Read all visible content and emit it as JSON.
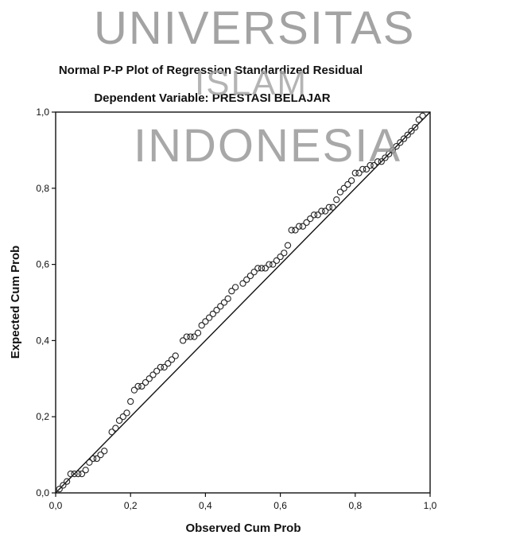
{
  "watermark": {
    "line1": "UNIVERSITAS",
    "line2": "ISLAM",
    "line3": "INDONESIA"
  },
  "chart_data": {
    "type": "scatter",
    "title": "Normal P-P Plot of Regression Standardized Residual",
    "subtitle": "Dependent Variable: PRESTASI BELAJAR",
    "xlabel": "Observed Cum Prob",
    "ylabel": "Expected Cum Prob",
    "xlim": [
      0,
      1
    ],
    "ylim": [
      0,
      1
    ],
    "x_ticks": [
      0,
      0.2,
      0.4,
      0.6,
      0.8,
      1.0
    ],
    "y_ticks": [
      0,
      0.2,
      0.4,
      0.6,
      0.8,
      1.0
    ],
    "x_tick_labels": [
      "0,0",
      "0,2",
      "0,4",
      "0,6",
      "0,8",
      "1,0"
    ],
    "y_tick_labels": [
      "0,0",
      "0,2",
      "0,4",
      "0,6",
      "0,8",
      "1,0"
    ],
    "reference_line": [
      [
        0,
        0
      ],
      [
        1,
        1
      ]
    ],
    "grid": false,
    "colors": {
      "points": "#222222",
      "line": "#111111",
      "axes": "#111111"
    },
    "points": [
      [
        0.01,
        0.01
      ],
      [
        0.02,
        0.02
      ],
      [
        0.03,
        0.03
      ],
      [
        0.04,
        0.05
      ],
      [
        0.05,
        0.05
      ],
      [
        0.06,
        0.05
      ],
      [
        0.07,
        0.05
      ],
      [
        0.08,
        0.06
      ],
      [
        0.09,
        0.08
      ],
      [
        0.1,
        0.09
      ],
      [
        0.11,
        0.09
      ],
      [
        0.12,
        0.1
      ],
      [
        0.13,
        0.11
      ],
      [
        0.15,
        0.16
      ],
      [
        0.16,
        0.17
      ],
      [
        0.17,
        0.19
      ],
      [
        0.18,
        0.2
      ],
      [
        0.19,
        0.21
      ],
      [
        0.2,
        0.24
      ],
      [
        0.21,
        0.27
      ],
      [
        0.22,
        0.28
      ],
      [
        0.23,
        0.28
      ],
      [
        0.24,
        0.29
      ],
      [
        0.25,
        0.3
      ],
      [
        0.26,
        0.31
      ],
      [
        0.27,
        0.32
      ],
      [
        0.28,
        0.33
      ],
      [
        0.29,
        0.33
      ],
      [
        0.3,
        0.34
      ],
      [
        0.31,
        0.35
      ],
      [
        0.32,
        0.36
      ],
      [
        0.34,
        0.4
      ],
      [
        0.35,
        0.41
      ],
      [
        0.36,
        0.41
      ],
      [
        0.37,
        0.41
      ],
      [
        0.38,
        0.42
      ],
      [
        0.39,
        0.44
      ],
      [
        0.4,
        0.45
      ],
      [
        0.41,
        0.46
      ],
      [
        0.42,
        0.47
      ],
      [
        0.43,
        0.48
      ],
      [
        0.44,
        0.49
      ],
      [
        0.45,
        0.5
      ],
      [
        0.46,
        0.51
      ],
      [
        0.47,
        0.53
      ],
      [
        0.48,
        0.54
      ],
      [
        0.5,
        0.55
      ],
      [
        0.51,
        0.56
      ],
      [
        0.52,
        0.57
      ],
      [
        0.53,
        0.58
      ],
      [
        0.54,
        0.59
      ],
      [
        0.55,
        0.59
      ],
      [
        0.56,
        0.59
      ],
      [
        0.57,
        0.6
      ],
      [
        0.58,
        0.6
      ],
      [
        0.59,
        0.61
      ],
      [
        0.6,
        0.62
      ],
      [
        0.61,
        0.63
      ],
      [
        0.62,
        0.65
      ],
      [
        0.63,
        0.69
      ],
      [
        0.64,
        0.69
      ],
      [
        0.65,
        0.7
      ],
      [
        0.66,
        0.7
      ],
      [
        0.67,
        0.71
      ],
      [
        0.68,
        0.72
      ],
      [
        0.69,
        0.73
      ],
      [
        0.7,
        0.73
      ],
      [
        0.71,
        0.74
      ],
      [
        0.72,
        0.74
      ],
      [
        0.73,
        0.75
      ],
      [
        0.74,
        0.75
      ],
      [
        0.75,
        0.77
      ],
      [
        0.76,
        0.79
      ],
      [
        0.77,
        0.8
      ],
      [
        0.78,
        0.81
      ],
      [
        0.79,
        0.82
      ],
      [
        0.8,
        0.84
      ],
      [
        0.81,
        0.84
      ],
      [
        0.82,
        0.85
      ],
      [
        0.83,
        0.85
      ],
      [
        0.84,
        0.86
      ],
      [
        0.85,
        0.86
      ],
      [
        0.86,
        0.87
      ],
      [
        0.87,
        0.87
      ],
      [
        0.88,
        0.88
      ],
      [
        0.89,
        0.89
      ],
      [
        0.9,
        0.9
      ],
      [
        0.91,
        0.91
      ],
      [
        0.92,
        0.92
      ],
      [
        0.93,
        0.93
      ],
      [
        0.94,
        0.94
      ],
      [
        0.95,
        0.95
      ],
      [
        0.96,
        0.96
      ],
      [
        0.97,
        0.98
      ],
      [
        0.98,
        0.99
      ]
    ]
  }
}
